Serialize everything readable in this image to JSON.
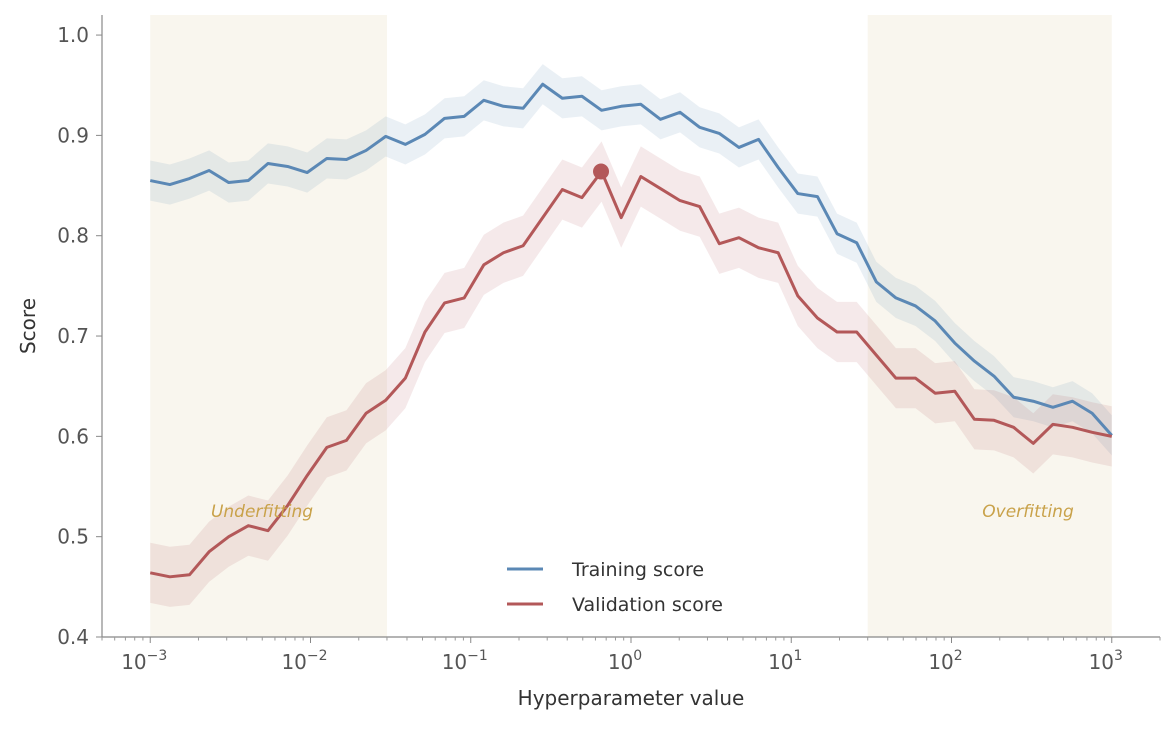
{
  "chart_data": {
    "type": "line",
    "xlabel": "Hyperparameter value",
    "ylabel": "Score",
    "xscale": "log",
    "xlim": [
      0.0005,
      2000
    ],
    "ylim": [
      0.4,
      1.02
    ],
    "x_range": [
      0.001,
      1000
    ],
    "n_points": 50,
    "yticks": [
      "0.4",
      "0.5",
      "0.6",
      "0.7",
      "0.8",
      "0.9",
      "1.0"
    ],
    "xticks": [
      {
        "base": "10",
        "exp": "−3"
      },
      {
        "base": "10",
        "exp": "−2"
      },
      {
        "base": "10",
        "exp": "−1"
      },
      {
        "base": "10",
        "exp": "0"
      },
      {
        "base": "10",
        "exp": "1"
      },
      {
        "base": "10",
        "exp": "2"
      },
      {
        "base": "10",
        "exp": "3"
      }
    ],
    "grid": false,
    "legend_position": "bottom-center",
    "regions": [
      {
        "label": "Underfitting",
        "x_from": 0.001,
        "x_to": 0.03,
        "color": "#f9f6ee"
      },
      {
        "label": "Overfitting",
        "x_from": 30,
        "x_to": 1000,
        "color": "#f9f6ee"
      }
    ],
    "annotation_color": "#c9a24a",
    "series": [
      {
        "name": "Training score",
        "color": "#5b88b5",
        "band": 0.02,
        "values": [
          0.855,
          0.851,
          0.857,
          0.865,
          0.853,
          0.855,
          0.872,
          0.869,
          0.863,
          0.877,
          0.876,
          0.885,
          0.899,
          0.891,
          0.901,
          0.917,
          0.919,
          0.935,
          0.929,
          0.927,
          0.951,
          0.937,
          0.939,
          0.925,
          0.929,
          0.931,
          0.916,
          0.923,
          0.908,
          0.902,
          0.888,
          0.896,
          0.868,
          0.842,
          0.839,
          0.802,
          0.793,
          0.754,
          0.738,
          0.73,
          0.715,
          0.693,
          0.675,
          0.66,
          0.639,
          0.635,
          0.629,
          0.635,
          0.623,
          0.601
        ]
      },
      {
        "name": "Validation score",
        "color": "#b35859",
        "band": 0.03,
        "values": [
          0.464,
          0.46,
          0.462,
          0.485,
          0.5,
          0.511,
          0.506,
          0.531,
          0.561,
          0.589,
          0.596,
          0.623,
          0.636,
          0.658,
          0.704,
          0.733,
          0.738,
          0.771,
          0.783,
          0.79,
          0.818,
          0.846,
          0.838,
          0.864,
          0.818,
          0.859,
          0.847,
          0.835,
          0.829,
          0.792,
          0.798,
          0.788,
          0.783,
          0.74,
          0.718,
          0.704,
          0.704,
          0.681,
          0.658,
          0.658,
          0.643,
          0.645,
          0.617,
          0.616,
          0.609,
          0.593,
          0.612,
          0.609,
          0.604,
          0.6
        ]
      }
    ],
    "best_point": {
      "x": 0.65,
      "y": 0.864,
      "series": "Validation score"
    }
  }
}
